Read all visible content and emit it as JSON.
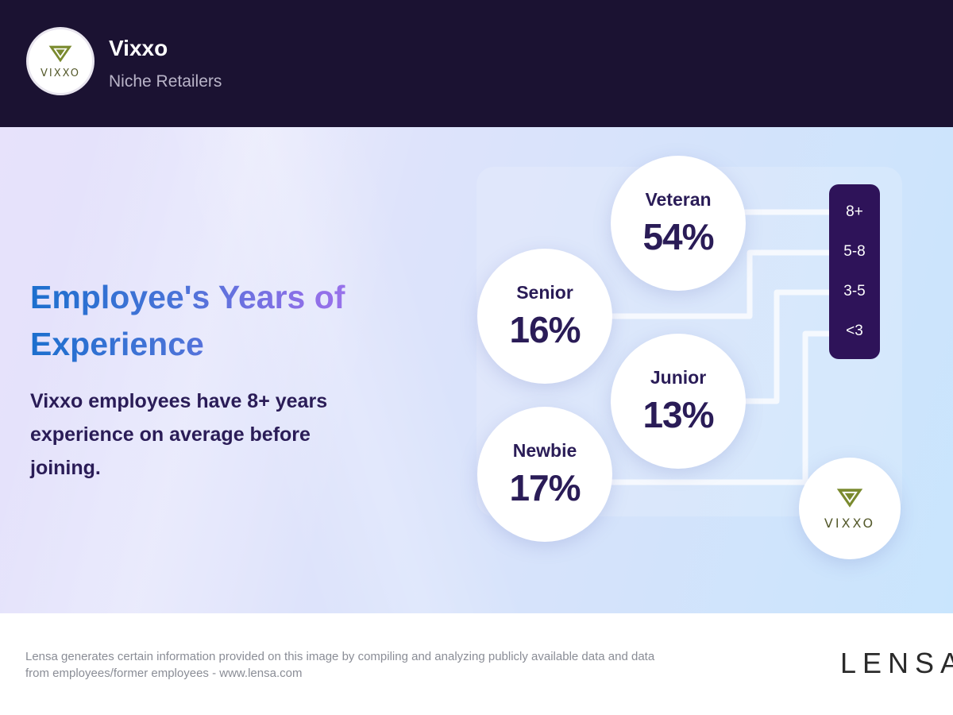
{
  "header": {
    "logo_text": "VIXXO",
    "company_name": "Vixxo",
    "industry": "Niche Retailers"
  },
  "main": {
    "title": "Employee's Years of Experience",
    "subtitle": "Vixxo employees have 8+ years experience on average before joining."
  },
  "experience": {
    "levels": [
      {
        "label": "Veteran",
        "value": "54%"
      },
      {
        "label": "Senior",
        "value": "16%"
      },
      {
        "label": "Junior",
        "value": "13%"
      },
      {
        "label": "Newbie",
        "value": "17%"
      }
    ],
    "ranges": [
      "8+",
      "5-8",
      "3-5",
      "<3"
    ],
    "brand_logo_text": "VIXXO"
  },
  "footer": {
    "disclaimer": "Lensa generates certain information provided on this image by compiling and analyzing publicly available data and data from employees/former employees - www.lensa.com",
    "brand": "LENSA"
  },
  "colors": {
    "header_bg": "#1b1232",
    "text_dark": "#2a1c57",
    "range_bar": "#2e1359",
    "logo_olive": "#7a8a2e"
  }
}
